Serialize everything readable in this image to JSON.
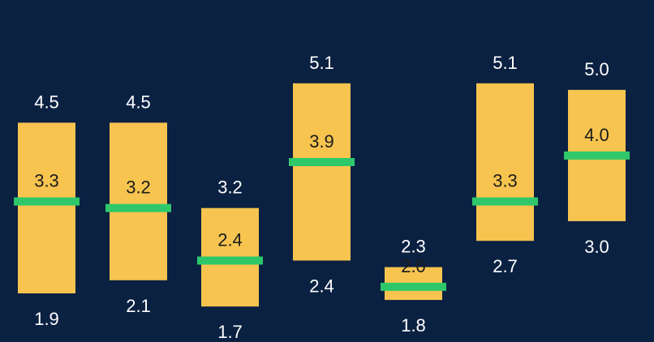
{
  "colors": {
    "background": "#0b2142",
    "bar": "#f6c44f",
    "median": "#2ec86a",
    "outer_label": "#ffffff",
    "inner_label": "#1b1b1b"
  },
  "chart_data": {
    "type": "bar",
    "subtype": "floating-range-with-median",
    "title": "",
    "xlabel": "",
    "ylabel": "",
    "ylim": [
      1.6,
      5.3
    ],
    "grid": false,
    "legend": "none",
    "ranges": [
      {
        "low": 1.9,
        "mid": 3.3,
        "high": 4.5,
        "low_label": "1.9",
        "mid_label": "3.3",
        "high_label": "4.5"
      },
      {
        "low": 2.1,
        "mid": 3.2,
        "high": 4.5,
        "low_label": "2.1",
        "mid_label": "3.2",
        "high_label": "4.5"
      },
      {
        "low": 1.7,
        "mid": 2.4,
        "high": 3.2,
        "low_label": "1.7",
        "mid_label": "2.4",
        "high_label": "3.2"
      },
      {
        "low": 2.4,
        "mid": 3.9,
        "high": 5.1,
        "low_label": "2.4",
        "mid_label": "3.9",
        "high_label": "5.1"
      },
      {
        "low": 1.8,
        "mid": 2.0,
        "high": 2.3,
        "low_label": "1.8",
        "mid_label": "2.0",
        "high_label": "2.3"
      },
      {
        "low": 2.7,
        "mid": 3.3,
        "high": 5.1,
        "low_label": "2.7",
        "mid_label": "3.3",
        "high_label": "5.1"
      },
      {
        "low": 3.0,
        "mid": 4.0,
        "high": 5.0,
        "low_label": "3.0",
        "mid_label": "4.0",
        "high_label": "5.0"
      }
    ]
  }
}
